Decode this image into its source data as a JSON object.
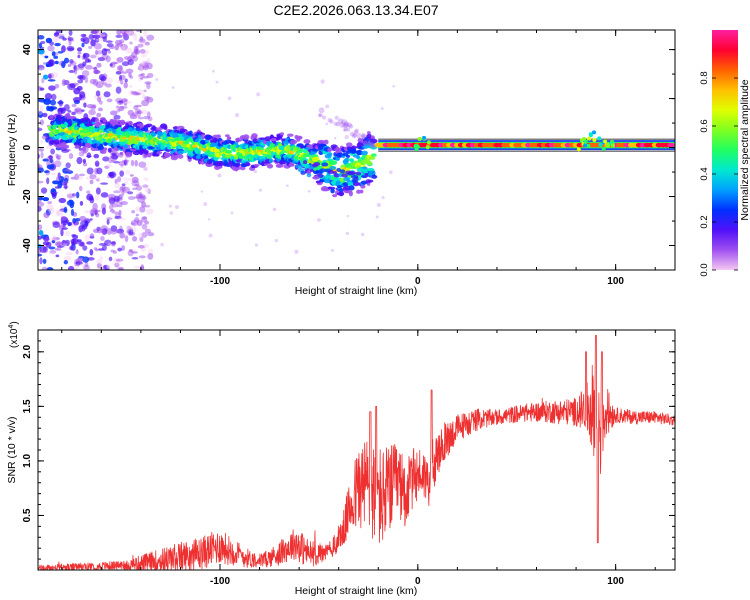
{
  "figure_title": "C2E2.2026.063.13.34.E07",
  "colors": {
    "snr_line": "#ee3030",
    "palette": [
      "#f4c8f0",
      "#a050f0",
      "#5010f8",
      "#0030ff",
      "#00a0ff",
      "#00e8d0",
      "#20ff60",
      "#80ff20",
      "#e0ff00",
      "#ffc000",
      "#ff6000",
      "#ff0030",
      "#ff20a0"
    ]
  },
  "chart_data": [
    {
      "type": "heatmap",
      "title": "C2E2.2026.063.13.34.E07",
      "xlabel": "Height of straight line (km)",
      "ylabel": "Frequency (Hz)",
      "xlim": [
        -192,
        130
      ],
      "ylim": [
        -50,
        48
      ],
      "xticks": [
        -100,
        0,
        100
      ],
      "yticks": [
        -40,
        -20,
        0,
        20,
        40
      ],
      "colorbar": {
        "label": "Normalized spectral amplitude",
        "range": [
          0,
          1
        ],
        "ticks": [
          "0.0",
          "0.2",
          "0.4",
          "0.6",
          "0.8"
        ]
      },
      "features": {
        "tone_frequency_hz": 1,
        "tone_start_km": -20,
        "chirp_points": [
          [
            -180,
            7
          ],
          [
            -150,
            4
          ],
          [
            -120,
            2
          ],
          [
            -100,
            -2
          ],
          [
            -85,
            -2
          ],
          [
            -65,
            -1
          ],
          [
            -50,
            -6
          ],
          [
            -40,
            -10
          ],
          [
            -30,
            -8
          ],
          [
            -25,
            -4
          ]
        ],
        "noise_region_km": [
          -192,
          -145
        ]
      }
    },
    {
      "type": "line",
      "xlabel": "Height of straight line (km)",
      "ylabel": "SNR (10 * v/v)",
      "ylabel_scale": "(x10",
      "ylabel_scale_exp": "4",
      "xlim": [
        -192,
        130
      ],
      "ylim": [
        0,
        22000
      ],
      "xticks": [
        -100,
        0,
        100
      ],
      "ytick_labels": [
        "0.5",
        "1.0",
        "1.5",
        "2.0"
      ],
      "yticks": [
        5000,
        10000,
        15000,
        20000
      ],
      "series": [
        {
          "name": "SNR",
          "envelope_x": [
            -192,
            -160,
            -145,
            -130,
            -110,
            -100,
            -95,
            -85,
            -78,
            -70,
            -62,
            -55,
            -48,
            -42,
            -38,
            -34,
            -30,
            -26,
            -22,
            -18,
            -14,
            -10,
            -6,
            -2,
            2,
            6,
            10,
            15,
            20,
            30,
            40,
            50,
            60,
            70,
            80,
            86,
            90,
            92,
            95,
            100,
            110,
            120,
            130
          ],
          "envelope_y": [
            150,
            350,
            500,
            900,
            1500,
            2200,
            1800,
            1000,
            900,
            1500,
            2500,
            1500,
            1500,
            2200,
            3500,
            6000,
            7500,
            8000,
            7000,
            6500,
            7500,
            8000,
            7000,
            8500,
            9000,
            8000,
            10500,
            12000,
            13000,
            13800,
            14000,
            14300,
            14500,
            14500,
            14500,
            14800,
            15000,
            13500,
            14500,
            14200,
            14000,
            14000,
            13700
          ],
          "noise_amp_x": [
            -192,
            -150,
            -120,
            -100,
            -80,
            -60,
            -45,
            -38,
            -30,
            -20,
            -10,
            0,
            10,
            20,
            40,
            60,
            80,
            85,
            89,
            92,
            95,
            100,
            130
          ],
          "noise_amp_y": [
            300,
            400,
            1400,
            1600,
            600,
            1600,
            700,
            1500,
            4000,
            5000,
            3500,
            2500,
            2000,
            1300,
            700,
            900,
            1300,
            2200,
            4500,
            6000,
            2500,
            700,
            500
          ],
          "spikes": [
            [
              -24,
              14500
            ],
            [
              -21,
              15000
            ],
            [
              7,
              16500
            ],
            [
              90,
              21500
            ],
            [
              91,
              2500
            ],
            [
              93,
              20000
            ],
            [
              85,
              20000
            ]
          ]
        }
      ]
    }
  ]
}
